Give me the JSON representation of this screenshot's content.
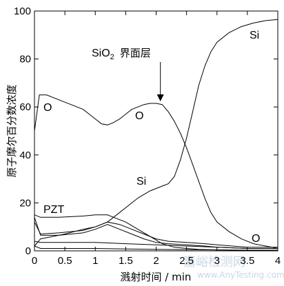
{
  "chart_data": {
    "type": "line",
    "xlabel": "溅射时间 / min",
    "ylabel": "原子摩尔百分数浓度",
    "xlim": [
      0,
      4
    ],
    "ylim": [
      0,
      100
    ],
    "x_ticks": [
      "0",
      "0.5",
      "1",
      "1.5",
      "2",
      "2.5",
      "3",
      "3.5",
      "4"
    ],
    "y_ticks": [
      "0",
      "20",
      "40",
      "60",
      "80",
      "100"
    ],
    "grid": false,
    "annotations": {
      "sio2_prefix": "SiO",
      "sio2_sub": "2",
      "sio2_suffix": "界面层",
      "o_left": "O",
      "o_mid": "O",
      "o_right": "O",
      "si_top": "Si",
      "si_mid": "Si",
      "pzt": "PZT"
    },
    "arrow_target": [
      2.07,
      61.5
    ],
    "series": [
      {
        "x": [
          0,
          0.08,
          0.2,
          0.4,
          0.6,
          0.8,
          1.0,
          1.1,
          1.2,
          1.3,
          1.4,
          1.5,
          1.6,
          1.7,
          1.8,
          1.9,
          2.0,
          2.1,
          2.2,
          2.3,
          2.4,
          2.5,
          2.6,
          2.7,
          2.8,
          2.9,
          3.0,
          3.2,
          3.4,
          3.6,
          3.8,
          4.0
        ],
        "values": [
          50,
          65,
          65,
          63,
          61,
          59,
          55,
          53,
          52.5,
          53.5,
          55,
          57,
          59,
          60,
          61,
          61.5,
          61.5,
          61,
          58,
          54,
          49,
          43,
          36,
          29,
          22,
          16,
          12,
          8,
          5,
          3,
          2,
          1
        ]
      },
      {
        "x": [
          0,
          0.1,
          0.3,
          0.5,
          0.8,
          1.0,
          1.2,
          1.3,
          1.4,
          1.5,
          1.6,
          1.7,
          1.8,
          1.9,
          2.0,
          2.1,
          2.2,
          2.3,
          2.4,
          2.5,
          2.6,
          2.7,
          2.8,
          2.9,
          3.0,
          3.2,
          3.4,
          3.6,
          3.8,
          4.0
        ],
        "values": [
          2,
          5,
          6,
          7,
          9,
          10,
          12,
          14,
          16,
          18,
          20,
          22,
          23.5,
          25,
          26,
          27,
          28,
          31,
          38,
          47,
          58,
          69,
          77,
          83,
          87,
          91,
          93.5,
          95,
          96,
          96.5
        ]
      },
      {
        "x": [
          0,
          0.1,
          0.4,
          0.8,
          1.0,
          1.2,
          1.3,
          1.5,
          1.7,
          1.9,
          2.1,
          2.3,
          2.5,
          2.7,
          3.0,
          3.5,
          4.0
        ],
        "values": [
          15,
          14,
          14,
          14.5,
          15,
          15,
          14,
          12,
          9,
          6,
          3,
          1.5,
          1,
          0.6,
          0.4,
          0.2,
          0.2
        ]
      },
      {
        "x": [
          0,
          0.1,
          0.4,
          0.8,
          1.0,
          1.2,
          1.4,
          1.6,
          1.8,
          2.0,
          2.2,
          2.5,
          2.8,
          3.0,
          3.5,
          4.0
        ],
        "values": [
          12,
          7,
          7.5,
          8.5,
          10,
          12,
          11,
          9,
          7,
          5,
          4,
          3.5,
          3,
          2.5,
          1.5,
          1.5
        ]
      },
      {
        "x": [
          0,
          0.1,
          0.4,
          0.8,
          1.0,
          1.2,
          1.4,
          1.6,
          1.8,
          2.0,
          2.2,
          2.5,
          2.8,
          3.0,
          3.5,
          4.0
        ],
        "values": [
          14,
          6.5,
          6.5,
          7.5,
          9,
          11,
          9,
          7,
          5,
          3.5,
          3,
          2.5,
          2,
          1.5,
          1,
          1
        ]
      },
      {
        "x": [
          0,
          0.1,
          0.5,
          1.0,
          1.5,
          2.0,
          2.5,
          3.0,
          3.5,
          4.0
        ],
        "values": [
          4,
          3.5,
          3.5,
          3.5,
          3,
          2.5,
          2,
          1.5,
          1,
          1
        ]
      },
      {
        "x": [
          0,
          0.1,
          0.5,
          1.0,
          1.5,
          2.0,
          2.5,
          3.0,
          3.5,
          4.0
        ],
        "values": [
          2,
          1,
          1,
          1,
          0.8,
          0.6,
          0.5,
          0.4,
          0.3,
          0.3
        ]
      }
    ]
  },
  "watermark": {
    "main": "嘉峪检测网",
    "url": "www.AnyTesting.com"
  }
}
